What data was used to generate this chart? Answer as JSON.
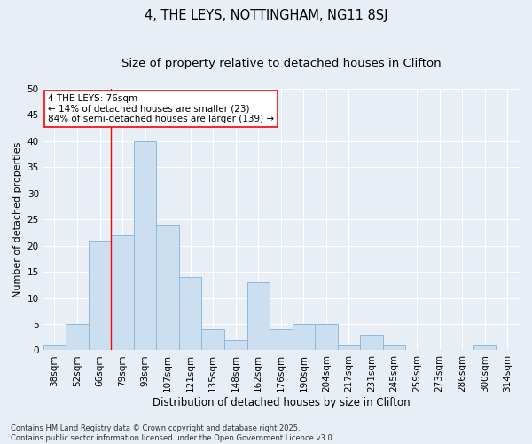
{
  "title": "4, THE LEYS, NOTTINGHAM, NG11 8SJ",
  "subtitle": "Size of property relative to detached houses in Clifton",
  "xlabel": "Distribution of detached houses by size in Clifton",
  "ylabel": "Number of detached properties",
  "categories": [
    "38sqm",
    "52sqm",
    "66sqm",
    "79sqm",
    "93sqm",
    "107sqm",
    "121sqm",
    "135sqm",
    "148sqm",
    "162sqm",
    "176sqm",
    "190sqm",
    "204sqm",
    "217sqm",
    "231sqm",
    "245sqm",
    "259sqm",
    "273sqm",
    "286sqm",
    "300sqm",
    "314sqm"
  ],
  "values": [
    1,
    5,
    21,
    22,
    40,
    24,
    14,
    4,
    2,
    13,
    4,
    5,
    5,
    1,
    3,
    1,
    0,
    0,
    0,
    1,
    0
  ],
  "bar_color": "#ccdff0",
  "bar_edge_color": "#90b8d8",
  "background_color": "#e8eef5",
  "vline_x": 3,
  "vline_color": "red",
  "annotation_line1": "4 THE LEYS: 76sqm",
  "annotation_line2": "← 14% of detached houses are smaller (23)",
  "annotation_line3": "84% of semi-detached houses are larger (139) →",
  "annotation_box_color": "white",
  "annotation_box_edge": "red",
  "ylim": [
    0,
    50
  ],
  "yticks": [
    0,
    5,
    10,
    15,
    20,
    25,
    30,
    35,
    40,
    45,
    50
  ],
  "footer": "Contains HM Land Registry data © Crown copyright and database right 2025.\nContains public sector information licensed under the Open Government Licence v3.0.",
  "title_fontsize": 10.5,
  "subtitle_fontsize": 9.5,
  "xlabel_fontsize": 8.5,
  "ylabel_fontsize": 8,
  "tick_fontsize": 7.5,
  "annotation_fontsize": 7.5,
  "footer_fontsize": 6
}
